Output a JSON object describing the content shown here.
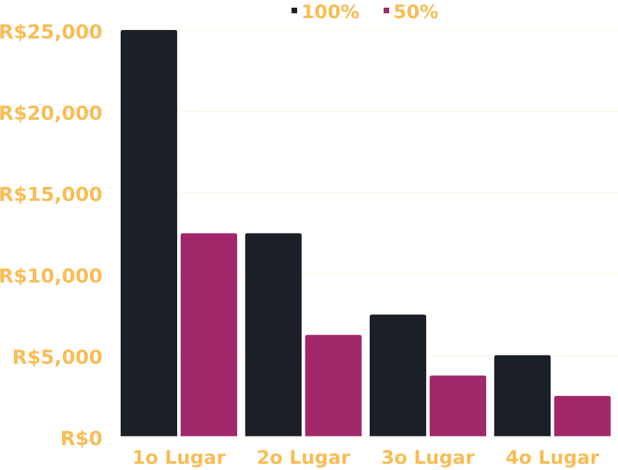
{
  "chart_data": {
    "type": "bar",
    "categories": [
      "1o Lugar",
      "2o Lugar",
      "3o Lugar",
      "4o Lugar"
    ],
    "series": [
      {
        "name": "100%",
        "values": [
          25000,
          12500,
          7500,
          5000
        ],
        "color": "#1b1f27"
      },
      {
        "name": "50%",
        "values": [
          12500,
          6250,
          3750,
          2500
        ],
        "color": "#a0286b"
      }
    ],
    "y_ticks": [
      "R$0",
      "R$5,000",
      "R$10,000",
      "R$15,000",
      "R$20,000",
      "R$25,000"
    ],
    "ylim": [
      0,
      25000
    ],
    "grid": true,
    "legend_position": "top-center",
    "text_color": "#f8bd55"
  }
}
